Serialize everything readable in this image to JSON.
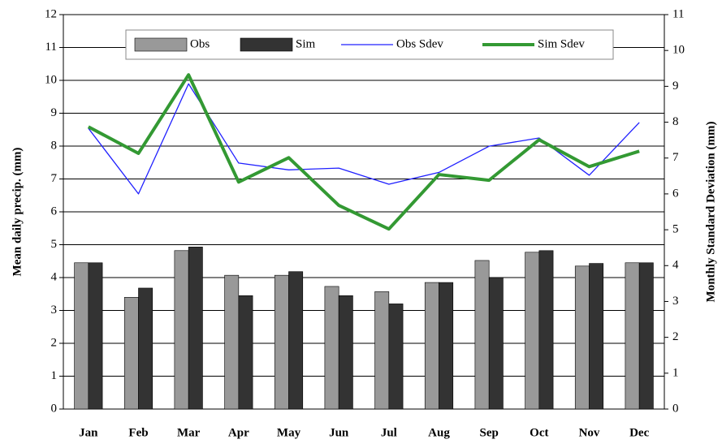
{
  "chart_data": {
    "type": "bar",
    "categories": [
      "Jan",
      "Feb",
      "Mar",
      "Apr",
      "May",
      "Jun",
      "Jul",
      "Aug",
      "Sep",
      "Oct",
      "Nov",
      "Dec"
    ],
    "ylabel": "Mean daily precip. (mm)",
    "y2label": "Monthly Standard Deviation (mm)",
    "ylim": [
      0,
      12
    ],
    "yticks": [
      0,
      1,
      2,
      3,
      4,
      5,
      6,
      7,
      8,
      9,
      10,
      11,
      12
    ],
    "y2lim": [
      0,
      11
    ],
    "y2ticks": [
      0,
      1,
      2,
      3,
      4,
      5,
      6,
      7,
      8,
      9,
      10,
      11
    ],
    "grid": true,
    "legend": "top",
    "series": [
      {
        "name": "Obs",
        "color": "#999999",
        "type": "bar",
        "values": [
          4.45,
          3.4,
          4.82,
          4.07,
          4.07,
          3.73,
          3.57,
          3.85,
          4.52,
          4.77,
          4.35,
          4.45
        ]
      },
      {
        "name": "Sim",
        "color": "#333333",
        "type": "bar",
        "values": [
          4.45,
          3.68,
          4.93,
          3.45,
          4.18,
          3.45,
          3.2,
          3.85,
          4.0,
          4.82,
          4.43,
          4.45
        ]
      },
      {
        "name": "Obs Sdev",
        "color": "#2020ff",
        "type": "line",
        "axis": "y2",
        "values": [
          7.83,
          6.0,
          9.07,
          6.86,
          6.67,
          6.72,
          6.27,
          6.6,
          7.33,
          7.56,
          6.52,
          7.99
        ]
      },
      {
        "name": "Sim Sdev",
        "color": "#339933",
        "type": "line",
        "axis": "y2",
        "values": [
          7.87,
          7.13,
          9.32,
          6.33,
          7.01,
          5.68,
          5.02,
          6.54,
          6.38,
          7.51,
          6.76,
          7.19
        ]
      }
    ]
  }
}
